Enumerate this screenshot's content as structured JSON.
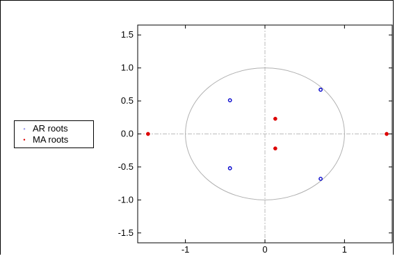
{
  "chart_data": {
    "type": "scatter",
    "title": "",
    "xlabel": "",
    "ylabel": "",
    "xlim": [
      -1.6,
      1.6
    ],
    "ylim": [
      -1.65,
      1.65
    ],
    "x_ticks": [
      "-1",
      "0",
      "1"
    ],
    "x_tick_values": [
      -1,
      0,
      1
    ],
    "y_ticks": [
      "1.5",
      "1.0",
      "0.5",
      "0.0",
      "-0.5",
      "-1.0",
      "-1.5"
    ],
    "y_tick_values": [
      1.5,
      1.0,
      0.5,
      0.0,
      -0.5,
      -1.0,
      -1.5
    ],
    "unit_circle": true,
    "reference_lines": {
      "x": 0,
      "y": 0
    },
    "legend_position": "left",
    "series": [
      {
        "name": "AR roots",
        "color": "#0000cc",
        "marker": "open-circle",
        "points": [
          [
            -0.44,
            0.51
          ],
          [
            -0.44,
            -0.52
          ],
          [
            0.7,
            0.67
          ],
          [
            0.7,
            -0.68
          ]
        ]
      },
      {
        "name": "MA roots",
        "color": "#dd0000",
        "marker": "filled-circle",
        "points": [
          [
            -1.47,
            0.0
          ],
          [
            1.53,
            0.0
          ],
          [
            0.13,
            0.23
          ],
          [
            0.13,
            -0.22
          ]
        ]
      }
    ]
  },
  "legend": {
    "items": [
      {
        "label": "AR roots",
        "symbol": "◦",
        "color": "#0000cc"
      },
      {
        "label": "MA roots",
        "symbol": "•",
        "color": "#dd0000"
      }
    ]
  }
}
